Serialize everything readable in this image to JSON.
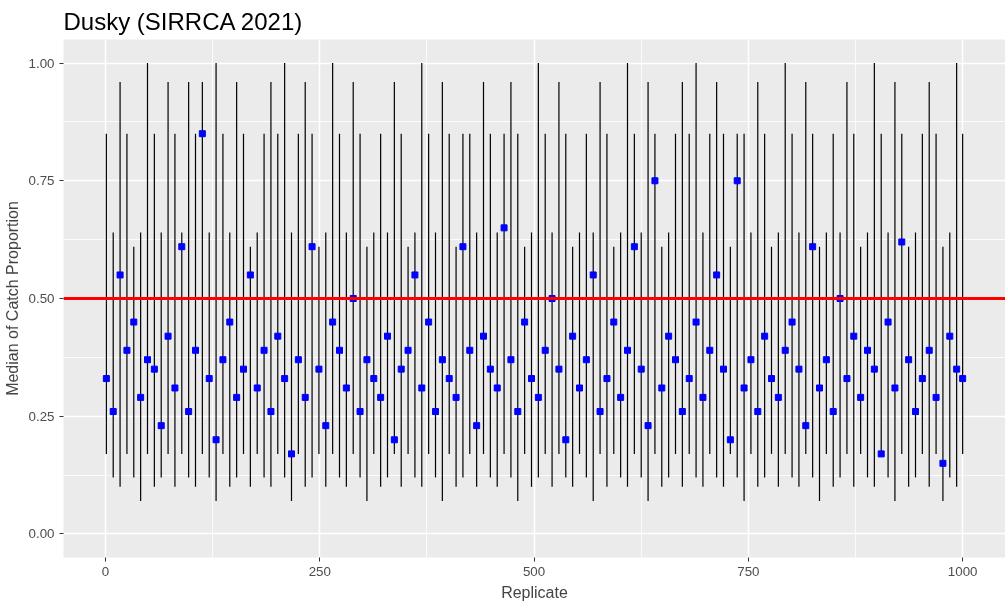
{
  "chart_data": {
    "type": "scatter",
    "title": "Dusky (SIRRCA 2021)",
    "xlabel": "Replicate",
    "ylabel": "Median of Catch Proportion",
    "x": [
      1,
      9,
      17,
      25,
      33,
      41,
      49,
      57,
      65,
      73,
      81,
      89,
      97,
      105,
      113,
      121,
      129,
      137,
      145,
      153,
      161,
      169,
      177,
      185,
      193,
      201,
      209,
      217,
      225,
      233,
      241,
      249,
      257,
      265,
      273,
      281,
      289,
      297,
      305,
      313,
      321,
      329,
      337,
      345,
      353,
      361,
      369,
      377,
      385,
      393,
      401,
      409,
      417,
      425,
      433,
      441,
      449,
      457,
      465,
      473,
      481,
      489,
      497,
      505,
      513,
      521,
      529,
      537,
      545,
      553,
      561,
      569,
      577,
      585,
      593,
      601,
      609,
      617,
      625,
      633,
      641,
      649,
      657,
      665,
      673,
      681,
      689,
      697,
      705,
      713,
      721,
      729,
      737,
      745,
      753,
      761,
      769,
      777,
      785,
      793,
      801,
      809,
      817,
      825,
      833,
      841,
      849,
      857,
      865,
      873,
      881,
      889,
      897,
      905,
      913,
      921,
      929,
      937,
      945,
      953,
      961,
      969,
      977,
      985,
      993,
      1000
    ],
    "series": [
      {
        "color": "#0000ff",
        "values": [
          0.33,
          0.26,
          0.55,
          0.39,
          0.45,
          0.29,
          0.37,
          0.35,
          0.23,
          0.42,
          0.31,
          0.61,
          0.26,
          0.39,
          0.85,
          0.33,
          0.2,
          0.37,
          0.45,
          0.29,
          0.35,
          0.55,
          0.31,
          0.39,
          0.26,
          0.42,
          0.33,
          0.17,
          0.37,
          0.29,
          0.61,
          0.35,
          0.23,
          0.45,
          0.39,
          0.31,
          0.5,
          0.26,
          0.37,
          0.33,
          0.29,
          0.42,
          0.2,
          0.35,
          0.39,
          0.55,
          0.31,
          0.45,
          0.26,
          0.37,
          0.33,
          0.29,
          0.61,
          0.39,
          0.23,
          0.42,
          0.35,
          0.31,
          0.65,
          0.37,
          0.26,
          0.45,
          0.33,
          0.29,
          0.39,
          0.5,
          0.35,
          0.2,
          0.42,
          0.31,
          0.37,
          0.55,
          0.26,
          0.33,
          0.45,
          0.29,
          0.39,
          0.61,
          0.35,
          0.23,
          0.75,
          0.31,
          0.42,
          0.37,
          0.26,
          0.33,
          0.45,
          0.29,
          0.39,
          0.55,
          0.35,
          0.2,
          0.75,
          0.31,
          0.37,
          0.26,
          0.42,
          0.33,
          0.29,
          0.39,
          0.45,
          0.35,
          0.23,
          0.61,
          0.31,
          0.37,
          0.26,
          0.5,
          0.33,
          0.42,
          0.29,
          0.39,
          0.35,
          0.17,
          0.45,
          0.31,
          0.62,
          0.37,
          0.26,
          0.33,
          0.39,
          0.29,
          0.15,
          0.42,
          0.35,
          0.33
        ],
        "errors": [
          [
            0.17,
            0.85
          ],
          [
            0.12,
            0.64
          ],
          [
            0.1,
            0.96
          ],
          [
            0.17,
            0.85
          ],
          [
            0.12,
            0.61
          ],
          [
            0.07,
            0.64
          ],
          [
            0.17,
            1.0
          ],
          [
            0.1,
            0.85
          ],
          [
            0.12,
            0.64
          ],
          [
            0.17,
            0.96
          ],
          [
            0.1,
            0.85
          ],
          [
            0.17,
            0.64
          ],
          [
            0.12,
            0.96
          ],
          [
            0.1,
            0.85
          ],
          [
            0.17,
            0.96
          ],
          [
            0.12,
            0.64
          ],
          [
            0.07,
            1.0
          ],
          [
            0.17,
            0.85
          ],
          [
            0.1,
            0.64
          ],
          [
            0.12,
            0.96
          ],
          [
            0.17,
            0.85
          ],
          [
            0.1,
            0.61
          ],
          [
            0.17,
            0.64
          ],
          [
            0.12,
            0.85
          ],
          [
            0.1,
            0.96
          ],
          [
            0.17,
            0.85
          ],
          [
            0.12,
            1.0
          ],
          [
            0.07,
            0.64
          ],
          [
            0.17,
            0.85
          ],
          [
            0.1,
            0.96
          ],
          [
            0.12,
            0.85
          ],
          [
            0.17,
            0.61
          ],
          [
            0.1,
            0.64
          ],
          [
            0.17,
            1.0
          ],
          [
            0.12,
            0.85
          ],
          [
            0.1,
            0.64
          ],
          [
            0.17,
            0.96
          ],
          [
            0.12,
            0.85
          ],
          [
            0.07,
            0.61
          ],
          [
            0.17,
            0.64
          ],
          [
            0.1,
            0.85
          ],
          [
            0.12,
            0.64
          ],
          [
            0.17,
            0.96
          ],
          [
            0.1,
            0.85
          ],
          [
            0.17,
            0.61
          ],
          [
            0.12,
            0.64
          ],
          [
            0.1,
            1.0
          ],
          [
            0.17,
            0.85
          ],
          [
            0.12,
            0.64
          ],
          [
            0.07,
            0.96
          ],
          [
            0.17,
            0.85
          ],
          [
            0.1,
            0.61
          ],
          [
            0.12,
            0.85
          ],
          [
            0.17,
            0.85
          ],
          [
            0.1,
            0.64
          ],
          [
            0.17,
            0.96
          ],
          [
            0.12,
            0.85
          ],
          [
            0.1,
            0.64
          ],
          [
            0.17,
            0.85
          ],
          [
            0.12,
            0.96
          ],
          [
            0.07,
            0.85
          ],
          [
            0.17,
            0.61
          ],
          [
            0.1,
            0.64
          ],
          [
            0.12,
            1.0
          ],
          [
            0.17,
            0.85
          ],
          [
            0.1,
            0.64
          ],
          [
            0.17,
            0.96
          ],
          [
            0.12,
            0.85
          ],
          [
            0.1,
            0.61
          ],
          [
            0.17,
            0.64
          ],
          [
            0.12,
            0.85
          ],
          [
            0.07,
            0.64
          ],
          [
            0.17,
            0.96
          ],
          [
            0.1,
            0.85
          ],
          [
            0.17,
            0.61
          ],
          [
            0.12,
            0.64
          ],
          [
            0.1,
            1.0
          ],
          [
            0.17,
            0.85
          ],
          [
            0.12,
            0.64
          ],
          [
            0.07,
            0.96
          ],
          [
            0.17,
            0.85
          ],
          [
            0.1,
            0.61
          ],
          [
            0.12,
            0.64
          ],
          [
            0.17,
            0.85
          ],
          [
            0.1,
            0.96
          ],
          [
            0.17,
            0.85
          ],
          [
            0.12,
            1.0
          ],
          [
            0.1,
            0.64
          ],
          [
            0.17,
            0.85
          ],
          [
            0.12,
            0.96
          ],
          [
            0.1,
            0.85
          ],
          [
            0.17,
            0.61
          ],
          [
            0.12,
            0.85
          ],
          [
            0.07,
            0.85
          ],
          [
            0.17,
            0.64
          ],
          [
            0.1,
            0.96
          ],
          [
            0.12,
            0.85
          ],
          [
            0.17,
            0.61
          ],
          [
            0.1,
            0.64
          ],
          [
            0.17,
            1.0
          ],
          [
            0.12,
            0.85
          ],
          [
            0.1,
            0.64
          ],
          [
            0.17,
            0.96
          ],
          [
            0.12,
            0.85
          ],
          [
            0.07,
            0.61
          ],
          [
            0.17,
            0.64
          ],
          [
            0.1,
            0.85
          ],
          [
            0.12,
            0.64
          ],
          [
            0.17,
            0.96
          ],
          [
            0.1,
            0.85
          ],
          [
            0.17,
            0.61
          ],
          [
            0.12,
            0.64
          ],
          [
            0.1,
            1.0
          ],
          [
            0.17,
            0.85
          ],
          [
            0.12,
            0.64
          ],
          [
            0.07,
            0.96
          ],
          [
            0.17,
            0.85
          ],
          [
            0.1,
            0.61
          ],
          [
            0.12,
            0.64
          ],
          [
            0.17,
            0.85
          ],
          [
            0.1,
            0.96
          ],
          [
            0.17,
            0.85
          ],
          [
            0.07,
            0.61
          ],
          [
            0.12,
            0.64
          ],
          [
            0.1,
            1.0
          ],
          [
            0.17,
            0.85
          ]
        ]
      }
    ],
    "xlim": [
      -49,
      1050
    ],
    "xticks": [
      0,
      250,
      500,
      750,
      1000
    ],
    "ylim": [
      -0.05,
      1.05
    ],
    "yticks": [
      {
        "value": 0,
        "label": "0.00"
      },
      {
        "value": 0.25,
        "label": "0.25"
      },
      {
        "value": 0.5,
        "label": "0.50"
      },
      {
        "value": 0.75,
        "label": "0.75"
      },
      {
        "value": 1,
        "label": "1.00"
      }
    ],
    "ref_lines": [
      {
        "axis": "y",
        "value": 0.5,
        "color": "#ff0000"
      }
    ],
    "grid": true,
    "marker": "square"
  }
}
